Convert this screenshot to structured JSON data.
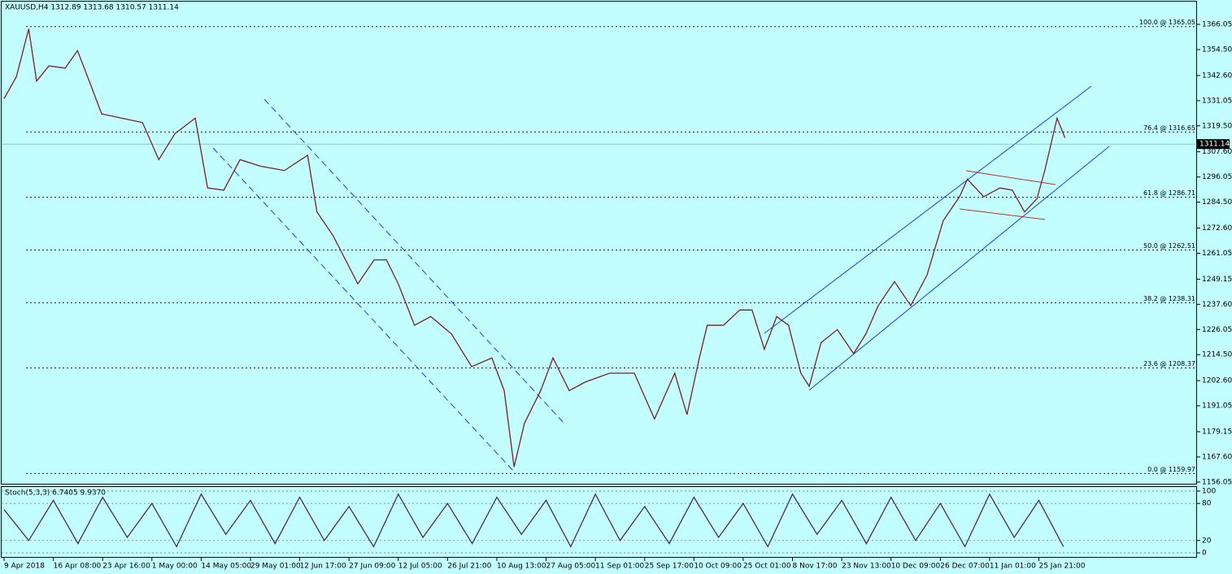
{
  "chart_data": [
    {
      "type": "line",
      "title": "XAUUSD,H4  1312.89 1313.68 1310.57 1311.14",
      "color": "#7a1f2b",
      "x": [
        0,
        0.25,
        0.5,
        0.66,
        0.91,
        1.24,
        1.49,
        1.73,
        1.98,
        2.39,
        2.81,
        3.14,
        3.47,
        3.88,
        4.13,
        4.46,
        4.79,
        5.2,
        5.69,
        6.16,
        6.35,
        6.68,
        7.18,
        7.51,
        7.76,
        8.0,
        8.33,
        8.66,
        9.08,
        9.49,
        9.9,
        10.15,
        10.35,
        10.56,
        10.89,
        11.14,
        11.47,
        11.8,
        12.29,
        12.79,
        13.2,
        13.61,
        13.86,
        14.11,
        14.27,
        14.6,
        14.93,
        15.18,
        15.43,
        15.68,
        15.92,
        16.17,
        16.34,
        16.58,
        16.91,
        17.24,
        17.49,
        17.74,
        18.07,
        18.4,
        18.73,
        19.06,
        19.39,
        19.55,
        19.88,
        20.21,
        20.46,
        20.71,
        20.96,
        21.12,
        21.37,
        21.53
      ],
      "values": [
        1332,
        1342,
        1364,
        1340,
        1347,
        1346,
        1354,
        1340,
        1325,
        1323,
        1321,
        1304,
        1316,
        1323,
        1291,
        1290,
        1304,
        1301,
        1299,
        1306,
        1280,
        1269,
        1247,
        1258,
        1258,
        1247,
        1228,
        1232,
        1224,
        1209,
        1213,
        1198,
        1163,
        1183,
        1198,
        1213,
        1198,
        1202,
        1206,
        1206,
        1185,
        1206,
        1187,
        1213,
        1228,
        1228,
        1235,
        1235,
        1217,
        1232,
        1228,
        1206,
        1200,
        1220,
        1226,
        1215,
        1224,
        1237,
        1248,
        1237,
        1251,
        1276,
        1287,
        1295,
        1287,
        1291,
        1290,
        1280,
        1286,
        1299,
        1323,
        1314
      ],
      "xlim": [
        0,
        24.21
      ],
      "ylim": [
        1154.9,
        1376.5
      ],
      "xticks": [
        {
          "value": 0,
          "label": "9 Apr 2018"
        },
        {
          "value": 1,
          "label": "16 Apr 08:00"
        },
        {
          "value": 2,
          "label": "23 Apr 16:00"
        },
        {
          "value": 3,
          "label": "1 May 00:00"
        },
        {
          "value": 4,
          "label": "14 May 05:00"
        },
        {
          "value": 5,
          "label": "29 May 01:00"
        },
        {
          "value": 6,
          "label": "12 Jun 17:00"
        },
        {
          "value": 7,
          "label": "27 Jun 09:00"
        },
        {
          "value": 8,
          "label": "12 Jul 05:00"
        },
        {
          "value": 9,
          "label": "26 Jul 21:00"
        },
        {
          "value": 10,
          "label": "10 Aug 13:00"
        },
        {
          "value": 11,
          "label": "27 Aug 05:00"
        },
        {
          "value": 12,
          "label": "11 Sep 01:00"
        },
        {
          "value": 13,
          "label": "25 Sep 17:00"
        },
        {
          "value": 14,
          "label": "10 Oct 09:00"
        },
        {
          "value": 15,
          "label": "25 Oct 01:00"
        },
        {
          "value": 16,
          "label": "8 Nov 17:00"
        },
        {
          "value": 17,
          "label": "23 Nov 13:00"
        },
        {
          "value": 18,
          "label": "10 Dec 09:00"
        },
        {
          "value": 19,
          "label": "26 Dec 07:00"
        },
        {
          "value": 20,
          "label": "11 Jan 01:00"
        },
        {
          "value": 21,
          "label": "25 Jan 21:00"
        }
      ],
      "yticks": [
        {
          "value": 1366.05,
          "label": "1366.05"
        },
        {
          "value": 1354.5,
          "label": "1354.50"
        },
        {
          "value": 1342.6,
          "label": "1342.60"
        },
        {
          "value": 1331.05,
          "label": "1331.05"
        },
        {
          "value": 1319.5,
          "label": "1319.50"
        },
        {
          "value": 1307.6,
          "label": "1307.60"
        },
        {
          "value": 1296.05,
          "label": "1296.05"
        },
        {
          "value": 1284.5,
          "label": "1284.50"
        },
        {
          "value": 1272.6,
          "label": "1272.60"
        },
        {
          "value": 1261.05,
          "label": "1261.05"
        },
        {
          "value": 1249.15,
          "label": "1249.15"
        },
        {
          "value": 1237.6,
          "label": "1237.60"
        },
        {
          "value": 1226.05,
          "label": "1226.05"
        },
        {
          "value": 1214.5,
          "label": "1214.50"
        },
        {
          "value": 1202.6,
          "label": "1202.60"
        },
        {
          "value": 1191.05,
          "label": "1191.05"
        },
        {
          "value": 1179.15,
          "label": "1179.15"
        },
        {
          "value": 1167.6,
          "label": "1167.60"
        },
        {
          "value": 1156.05,
          "label": "1156.05"
        }
      ],
      "levels": [
        {
          "value": 1365.05,
          "label": "100.0 @ 1365.05"
        },
        {
          "value": 1316.65,
          "label": "76.4 @ 1316.65"
        },
        {
          "value": 1286.71,
          "label": "61.8 @ 1286.71"
        },
        {
          "value": 1262.51,
          "label": "50.0 @ 1262.51"
        },
        {
          "value": 1238.31,
          "label": "38.2 @ 1238.31"
        },
        {
          "value": 1208.37,
          "label": "23.6 @ 1208.37"
        },
        {
          "value": 1159.97,
          "label": "0.0 @ 1159.97"
        }
      ],
      "last_price": 1311.14
    },
    {
      "type": "line",
      "title": "Stoch(5,3,3) 6.7405 9.9370",
      "color": "#4b2a6b",
      "x": [
        0,
        0.5,
        1,
        1.5,
        2,
        2.5,
        3,
        3.5,
        4,
        4.5,
        5,
        5.5,
        6,
        6.5,
        7,
        7.5,
        8,
        8.5,
        9,
        9.5,
        10,
        10.5,
        11,
        11.5,
        12,
        12.5,
        13,
        13.5,
        14,
        14.5,
        15,
        15.5,
        16,
        16.5,
        17,
        17.5,
        18,
        18.5,
        19,
        19.5,
        20,
        20.5,
        21,
        21.5
      ],
      "values": [
        70,
        20,
        85,
        15,
        90,
        25,
        80,
        10,
        95,
        30,
        85,
        15,
        90,
        20,
        75,
        10,
        95,
        25,
        80,
        15,
        90,
        30,
        85,
        10,
        95,
        20,
        75,
        15,
        90,
        25,
        80,
        10,
        95,
        30,
        85,
        15,
        90,
        20,
        80,
        10,
        95,
        25,
        85,
        10
      ],
      "xlim": [
        0,
        24.21
      ],
      "ylim": [
        -7.9,
        107.9
      ],
      "yticks": [
        0,
        20,
        80,
        100
      ]
    }
  ]
}
